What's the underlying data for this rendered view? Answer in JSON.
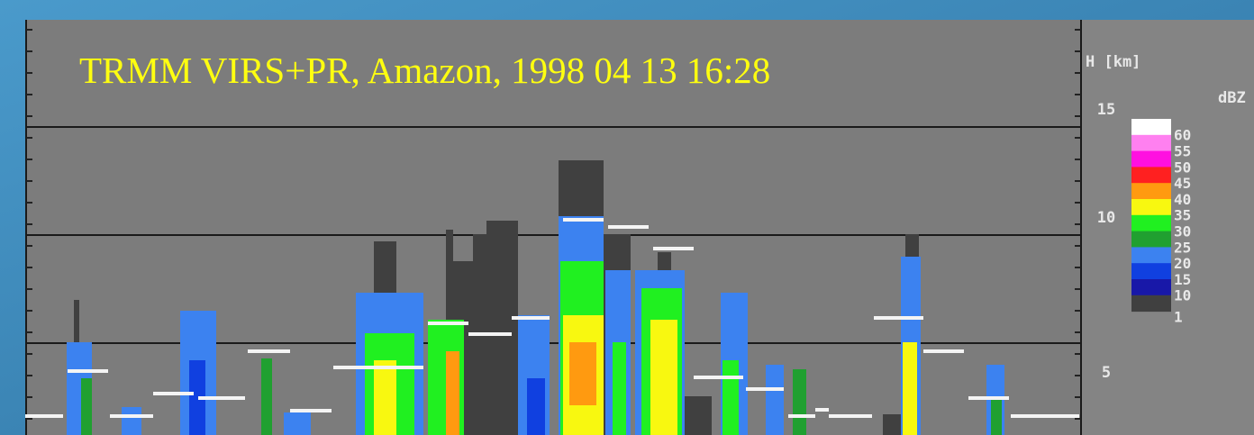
{
  "title": "TRMM VIRS+PR, Amazon, 1998 04 13 16:28",
  "axis": {
    "label": "H [km]",
    "ticks": [
      15,
      10,
      5
    ]
  },
  "colorbar": {
    "unit": "dBZ",
    "levels": [
      {
        "value": 60,
        "color": "#ffffff"
      },
      {
        "value": 55,
        "color": "#ff80f0"
      },
      {
        "value": 50,
        "color": "#ff10e0"
      },
      {
        "value": 45,
        "color": "#ff2020"
      },
      {
        "value": 40,
        "color": "#ff9a10"
      },
      {
        "value": 35,
        "color": "#f8f810"
      },
      {
        "value": 30,
        "color": "#20f020"
      },
      {
        "value": 25,
        "color": "#20a030"
      },
      {
        "value": 20,
        "color": "#3c82f0"
      },
      {
        "value": 15,
        "color": "#1040e0"
      },
      {
        "value": 10,
        "color": "#1818a8"
      },
      {
        "value": 1,
        "color": "#404040"
      }
    ]
  }
}
